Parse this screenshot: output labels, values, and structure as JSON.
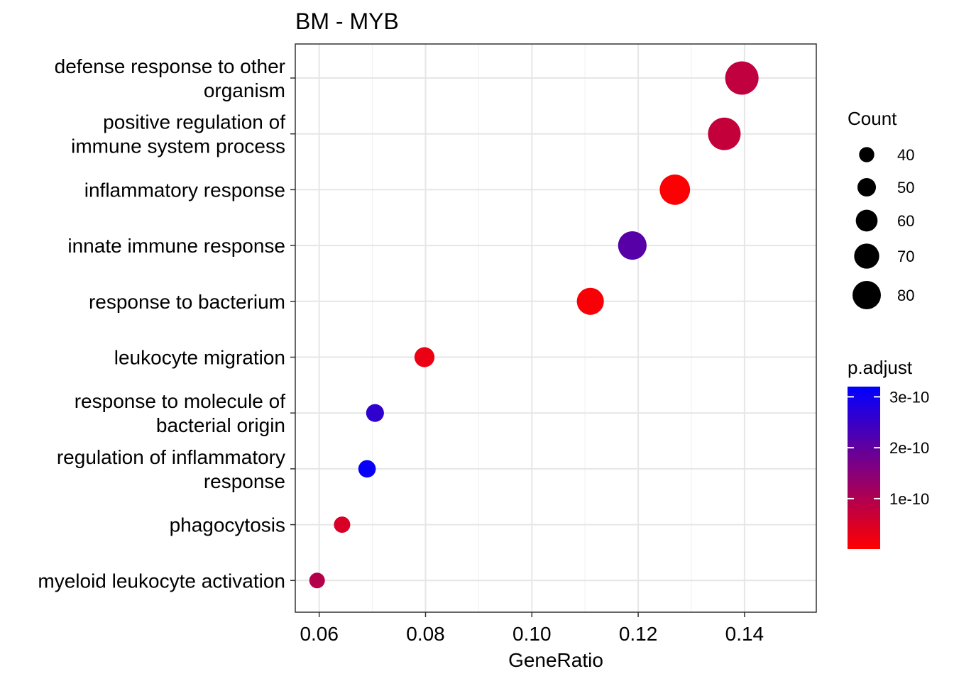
{
  "chart_data": {
    "type": "scatter",
    "title": "BM - MYB",
    "xlabel": "GeneRatio",
    "ylabel": "",
    "xlim": [
      0.0555,
      0.1535
    ],
    "xticks": [
      0.06,
      0.08,
      0.1,
      0.12,
      0.14
    ],
    "xtick_labels": [
      "0.06",
      "0.08",
      "0.10",
      "0.12",
      "0.14"
    ],
    "grid": true,
    "legend_position": "right",
    "categories": [
      "defense response to other organism",
      "positive regulation of immune system process",
      "inflammatory response",
      "innate immune response",
      "response to bacterium",
      "leukocyte migration",
      "response to molecule of bacterial origin",
      "regulation of inflammatory response",
      "phagocytosis",
      "myeloid leukocyte activation"
    ],
    "category_lines": [
      [
        "defense response to other",
        "organism"
      ],
      [
        "positive regulation of",
        "immune system process"
      ],
      [
        "inflammatory response"
      ],
      [
        "innate immune response"
      ],
      [
        "response to bacterium"
      ],
      [
        "leukocyte migration"
      ],
      [
        "response to molecule of",
        "bacterial origin"
      ],
      [
        "regulation of inflammatory",
        "response"
      ],
      [
        "phagocytosis"
      ],
      [
        "myeloid leukocyte activation"
      ]
    ],
    "points": [
      {
        "term": "defense response to other organism",
        "gene_ratio": 0.1395,
        "count": 84,
        "p_adjust": 8e-11
      },
      {
        "term": "positive regulation of immune system process",
        "gene_ratio": 0.1362,
        "count": 82,
        "p_adjust": 7.5e-11
      },
      {
        "term": "inflammatory response",
        "gene_ratio": 0.1269,
        "count": 76,
        "p_adjust": 5e-12
      },
      {
        "term": "innate immune response",
        "gene_ratio": 0.1189,
        "count": 71,
        "p_adjust": 2.1e-10
      },
      {
        "term": "response to bacterium",
        "gene_ratio": 0.111,
        "count": 67,
        "p_adjust": 8e-12
      },
      {
        "term": "leukocyte migration",
        "gene_ratio": 0.0798,
        "count": 48,
        "p_adjust": 2.5e-11
      },
      {
        "term": "response to molecule of bacterial origin",
        "gene_ratio": 0.0705,
        "count": 42,
        "p_adjust": 2.6e-10
      },
      {
        "term": "regulation of inflammatory response",
        "gene_ratio": 0.069,
        "count": 41,
        "p_adjust": 3.1e-10
      },
      {
        "term": "phagocytosis",
        "gene_ratio": 0.0643,
        "count": 38,
        "p_adjust": 5e-11
      },
      {
        "term": "myeloid leukocyte activation",
        "gene_ratio": 0.0596,
        "count": 36,
        "p_adjust": 9.5e-11
      }
    ],
    "size_legend": {
      "title": "Count",
      "values": [
        40,
        50,
        60,
        70,
        80
      ],
      "labels": [
        "40",
        "50",
        "60",
        "70",
        "80"
      ]
    },
    "color_legend": {
      "title": "p.adjust",
      "range": [
        1e-12,
        3.2e-10
      ],
      "ticks": [
        1e-10,
        2e-10,
        3e-10
      ],
      "labels": [
        "1e-10",
        "2e-10",
        "3e-10"
      ],
      "low_color": "#ff0000",
      "high_color": "#0000ff"
    }
  }
}
